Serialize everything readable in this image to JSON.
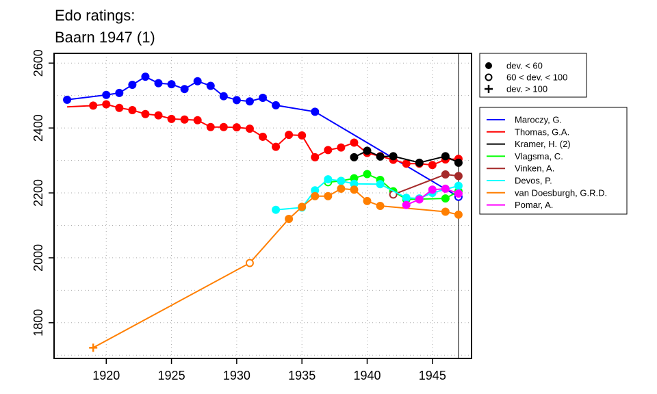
{
  "chart_data": {
    "type": "line",
    "title": [
      "Edo ratings:",
      "Baarn 1947 (1)"
    ],
    "xlabel": "",
    "ylabel": "",
    "xlim": [
      1916,
      1948
    ],
    "ylim": [
      1690,
      2630
    ],
    "x_ticks": [
      1920,
      1925,
      1930,
      1935,
      1940,
      1945
    ],
    "y_ticks": [
      1800,
      2000,
      2200,
      2400,
      2600
    ],
    "grid": true,
    "reference_line_x": 1947,
    "marker_legend": [
      {
        "marker": "filled",
        "label": "dev. < 60"
      },
      {
        "marker": "open",
        "label": "60 < dev. < 100"
      },
      {
        "marker": "plus",
        "label": "dev. > 100"
      }
    ],
    "series": [
      {
        "name": "Maroczy, G.",
        "color": "#0000ff",
        "points": [
          [
            1917,
            2487,
            "f"
          ],
          [
            1920,
            2502,
            "f"
          ],
          [
            1921,
            2508,
            "f"
          ],
          [
            1922,
            2533,
            "f"
          ],
          [
            1923,
            2558,
            "f"
          ],
          [
            1924,
            2538,
            "f"
          ],
          [
            1925,
            2535,
            "f"
          ],
          [
            1926,
            2520,
            "f"
          ],
          [
            1927,
            2544,
            "f"
          ],
          [
            1928,
            2530,
            "f"
          ],
          [
            1929,
            2498,
            "f"
          ],
          [
            1930,
            2486,
            "f"
          ],
          [
            1931,
            2482,
            "f"
          ],
          [
            1932,
            2493,
            "f"
          ],
          [
            1933,
            2470,
            "f"
          ],
          [
            1936,
            2450,
            "f"
          ],
          [
            1947,
            2188,
            "o"
          ]
        ]
      },
      {
        "name": "Thomas, G.A.",
        "color": "#ff0000",
        "points": [
          [
            1917,
            2465,
            "n"
          ],
          [
            1919,
            2469,
            "f"
          ],
          [
            1920,
            2473,
            "f"
          ],
          [
            1921,
            2462,
            "f"
          ],
          [
            1922,
            2455,
            "f"
          ],
          [
            1923,
            2443,
            "f"
          ],
          [
            1924,
            2439,
            "f"
          ],
          [
            1925,
            2428,
            "f"
          ],
          [
            1926,
            2426,
            "f"
          ],
          [
            1927,
            2424,
            "f"
          ],
          [
            1928,
            2403,
            "f"
          ],
          [
            1929,
            2403,
            "f"
          ],
          [
            1930,
            2402,
            "f"
          ],
          [
            1931,
            2398,
            "f"
          ],
          [
            1932,
            2373,
            "f"
          ],
          [
            1933,
            2342,
            "f"
          ],
          [
            1934,
            2379,
            "f"
          ],
          [
            1935,
            2377,
            "f"
          ],
          [
            1936,
            2310,
            "f"
          ],
          [
            1937,
            2332,
            "f"
          ],
          [
            1938,
            2340,
            "f"
          ],
          [
            1939,
            2355,
            "f"
          ],
          [
            1940,
            2323,
            "f"
          ],
          [
            1941,
            2313,
            "f"
          ],
          [
            1942,
            2302,
            "f"
          ],
          [
            1943,
            2290,
            "f"
          ],
          [
            1944,
            2290,
            "f"
          ],
          [
            1945,
            2286,
            "f"
          ],
          [
            1946,
            2303,
            "f"
          ],
          [
            1947,
            2305,
            "f"
          ]
        ]
      },
      {
        "name": "Kramer, H. (2)",
        "color": "#000000",
        "points": [
          [
            1939,
            2310,
            "f"
          ],
          [
            1940,
            2330,
            "f"
          ],
          [
            1941,
            2312,
            "f"
          ],
          [
            1942,
            2313,
            "f"
          ],
          [
            1944,
            2293,
            "f"
          ],
          [
            1946,
            2313,
            "f"
          ],
          [
            1947,
            2293,
            "f"
          ]
        ]
      },
      {
        "name": "Vlagsma, C.",
        "color": "#00ff00",
        "points": [
          [
            1937,
            2233,
            "o"
          ],
          [
            1938,
            2237,
            "f"
          ],
          [
            1939,
            2245,
            "f"
          ],
          [
            1940,
            2258,
            "f"
          ],
          [
            1941,
            2240,
            "f"
          ],
          [
            1942,
            2205,
            "f"
          ],
          [
            1943,
            2180,
            "f"
          ],
          [
            1946,
            2183,
            "f"
          ],
          [
            1947,
            2205,
            "f"
          ]
        ]
      },
      {
        "name": "Vinken, A.",
        "color": "#a52a2a",
        "points": [
          [
            1942,
            2195,
            "o"
          ],
          [
            1946,
            2257,
            "f"
          ],
          [
            1947,
            2252,
            "f"
          ]
        ]
      },
      {
        "name": "Devos, P.",
        "color": "#00ffff",
        "points": [
          [
            1933,
            2148,
            "f"
          ],
          [
            1935,
            2155,
            "f"
          ],
          [
            1936,
            2208,
            "f"
          ],
          [
            1937,
            2242,
            "f"
          ],
          [
            1938,
            2237,
            "f"
          ],
          [
            1939,
            2228,
            "f"
          ],
          [
            1941,
            2227,
            "f"
          ],
          [
            1943,
            2185,
            "f"
          ],
          [
            1944,
            2183,
            "f"
          ],
          [
            1945,
            2200,
            "f"
          ],
          [
            1947,
            2222,
            "f"
          ]
        ]
      },
      {
        "name": "van Doesburgh, G.R.D.",
        "color": "#ff7f00",
        "points": [
          [
            1919,
            1723,
            "p"
          ],
          [
            1931,
            1984,
            "o"
          ],
          [
            1934,
            2120,
            "f"
          ],
          [
            1935,
            2157,
            "f"
          ],
          [
            1936,
            2190,
            "f"
          ],
          [
            1937,
            2190,
            "f"
          ],
          [
            1938,
            2213,
            "f"
          ],
          [
            1939,
            2210,
            "f"
          ],
          [
            1940,
            2175,
            "f"
          ],
          [
            1941,
            2160,
            "f"
          ],
          [
            1946,
            2142,
            "f"
          ],
          [
            1947,
            2133,
            "f"
          ]
        ]
      },
      {
        "name": "Pomar, A.",
        "color": "#ff00ff",
        "points": [
          [
            1943,
            2163,
            "f"
          ],
          [
            1944,
            2180,
            "f"
          ],
          [
            1945,
            2210,
            "f"
          ],
          [
            1946,
            2213,
            "f"
          ],
          [
            1947,
            2198,
            "f"
          ]
        ]
      }
    ]
  }
}
